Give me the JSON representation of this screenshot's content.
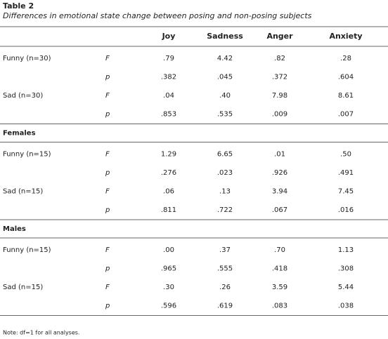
{
  "header": {
    "title": "Table 2",
    "subtitle": "Differences in emotional state change between posing and non-posing subjects"
  },
  "table": {
    "columns": [
      "Joy",
      "Sadness",
      "Anger",
      "Anxiety"
    ],
    "groups": [
      {
        "rows": [
          {
            "label": "Funny (n=30)",
            "stat": "F",
            "cells": [
              ".79",
              "4.42",
              ".82",
              ".28"
            ]
          },
          {
            "stat": "p",
            "cells": [
              ".382",
              ".045",
              ".372",
              ".604"
            ]
          },
          {
            "label": "Sad (n=30)",
            "stat": "F",
            "cells": [
              ".04",
              ".40",
              "7.98",
              "8.61"
            ]
          },
          {
            "stat": "p",
            "cells": [
              ".853",
              ".535",
              ".009",
              ".007"
            ]
          }
        ]
      },
      {
        "label": "Females",
        "rows": [
          {
            "label": "Funny (n=15)",
            "stat": "F",
            "cells": [
              "1.29",
              "6.65",
              ".01",
              ".50"
            ]
          },
          {
            "stat": "p",
            "cells": [
              ".276",
              ".023",
              ".926",
              ".491"
            ]
          },
          {
            "label": "Sad (n=15)",
            "stat": "F",
            "cells": [
              ".06",
              ".13",
              "3.94",
              "7.45"
            ]
          },
          {
            "stat": "p",
            "cells": [
              ".811",
              ".722",
              ".067",
              ".016"
            ]
          }
        ]
      },
      {
        "label": "Males",
        "rows": [
          {
            "label": "Funny (n=15)",
            "stat": "F",
            "cells": [
              ".00",
              ".37",
              ".70",
              "1.13"
            ]
          },
          {
            "stat": "p",
            "cells": [
              ".965",
              ".555",
              ".418",
              ".308"
            ]
          },
          {
            "label": "Sad (n=15)",
            "stat": "F",
            "cells": [
              ".30",
              ".26",
              "3.59",
              "5.44"
            ]
          },
          {
            "stat": "p",
            "cells": [
              ".596",
              ".619",
              ".083",
              ".038"
            ]
          }
        ]
      }
    ]
  },
  "footer": {
    "note": "Note: df=1 for all analyses."
  }
}
